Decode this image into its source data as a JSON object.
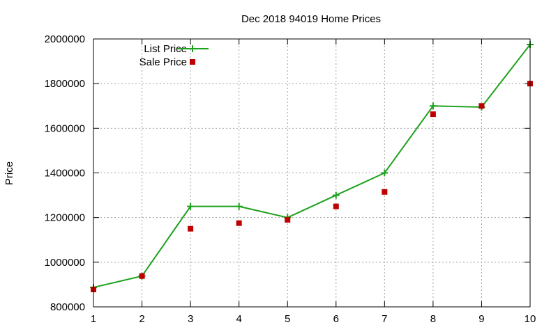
{
  "chart_data": {
    "type": "line",
    "title": "Dec 2018 94019 Home Prices",
    "xlabel": "",
    "ylabel": "Price",
    "x": [
      1,
      2,
      3,
      4,
      5,
      6,
      7,
      8,
      9,
      10
    ],
    "xlim": [
      1,
      10
    ],
    "ylim": [
      800000,
      2000000
    ],
    "xticks": [
      1,
      2,
      3,
      4,
      5,
      6,
      7,
      8,
      9,
      10
    ],
    "yticks": [
      800000,
      1000000,
      1200000,
      1400000,
      1600000,
      1800000,
      2000000
    ],
    "grid": true,
    "legend_position": "top-left",
    "series": [
      {
        "name": "List Price",
        "style": "line-with-plus-markers",
        "color": "#1ea11e",
        "values": [
          887000,
          938000,
          1250000,
          1250000,
          1200000,
          1300000,
          1400000,
          1700000,
          1695000,
          1975000
        ]
      },
      {
        "name": "Sale Price",
        "style": "square-markers",
        "color": "#c00000",
        "values": [
          878000,
          938000,
          1150000,
          1175000,
          1190000,
          1250000,
          1315000,
          1663000,
          1700000,
          1800000
        ]
      }
    ]
  }
}
